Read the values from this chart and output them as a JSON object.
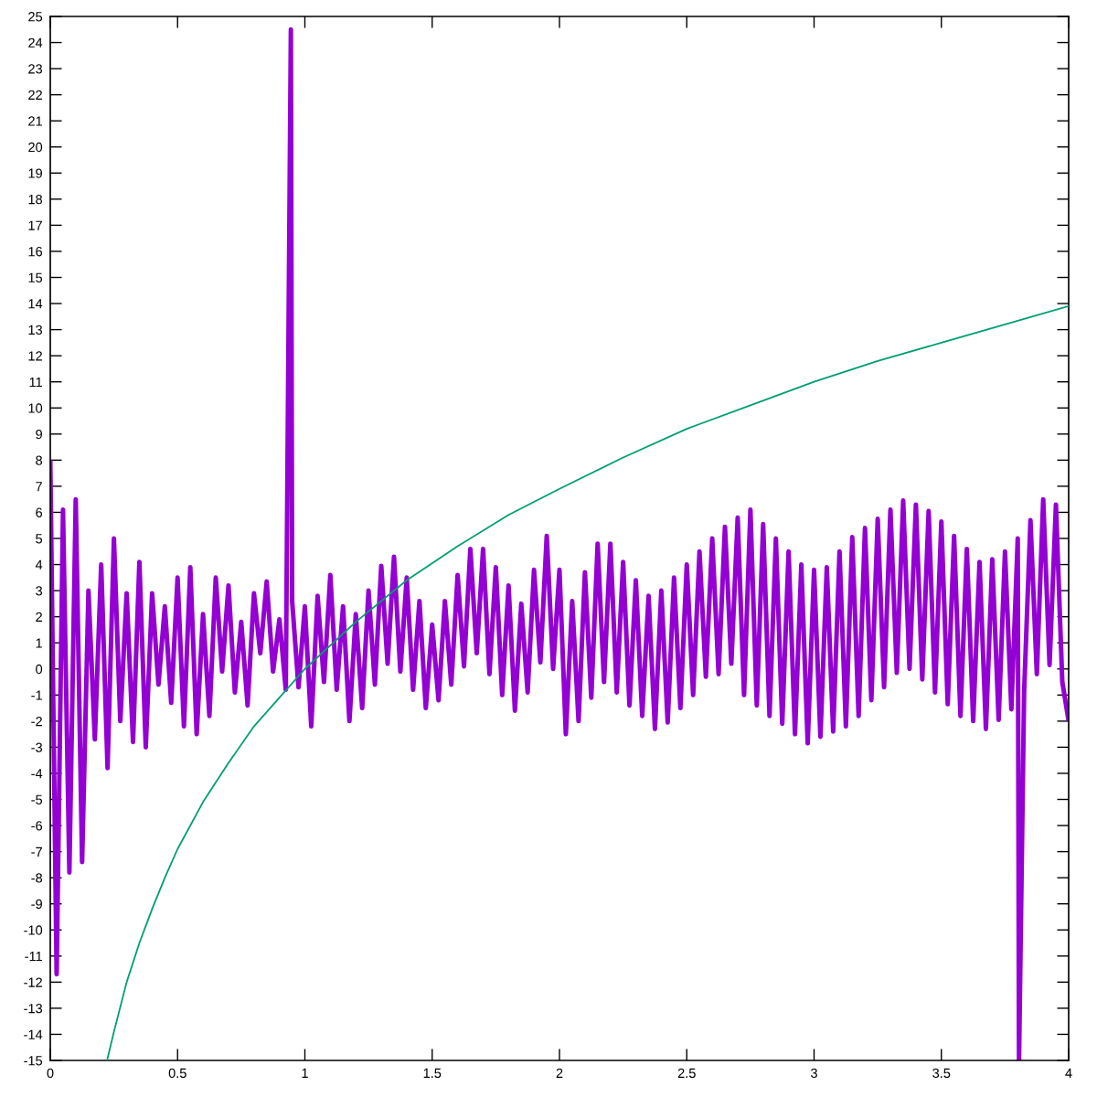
{
  "chart_data": {
    "type": "line",
    "xlim": [
      0,
      4
    ],
    "xticks": [
      0,
      0.5,
      1,
      1.5,
      2,
      2.5,
      3,
      3.5,
      4
    ],
    "ylim": [
      -15,
      25
    ],
    "yticks": [
      -15,
      -14,
      -13,
      -12,
      -11,
      -10,
      -9,
      -8,
      -7,
      -6,
      -5,
      -4,
      -3,
      -2,
      -1,
      0,
      1,
      2,
      3,
      4,
      5,
      6,
      7,
      8,
      9,
      10,
      11,
      12,
      13,
      14,
      15,
      16,
      17,
      18,
      19,
      20,
      21,
      22,
      23,
      24,
      25
    ],
    "series": [
      {
        "color": "#9400d3",
        "x": [
          0,
          0.025,
          0.05,
          0.075,
          0.1,
          0.125,
          0.15,
          0.175,
          0.2,
          0.225,
          0.25,
          0.275,
          0.3,
          0.325,
          0.35,
          0.375,
          0.4,
          0.425,
          0.45,
          0.475,
          0.5,
          0.525,
          0.55,
          0.575,
          0.6,
          0.625,
          0.65,
          0.675,
          0.7,
          0.725,
          0.75,
          0.775,
          0.8,
          0.825,
          0.85,
          0.875,
          0.9,
          0.925,
          0.945,
          0.95,
          0.975,
          1,
          1.025,
          1.05,
          1.075,
          1.1,
          1.125,
          1.15,
          1.175,
          1.2,
          1.225,
          1.25,
          1.275,
          1.3,
          1.325,
          1.35,
          1.375,
          1.4,
          1.425,
          1.45,
          1.475,
          1.5,
          1.525,
          1.55,
          1.575,
          1.6,
          1.625,
          1.65,
          1.675,
          1.7,
          1.725,
          1.75,
          1.775,
          1.8,
          1.825,
          1.85,
          1.875,
          1.9,
          1.925,
          1.95,
          1.975,
          2,
          2.025,
          2.05,
          2.075,
          2.1,
          2.125,
          2.15,
          2.175,
          2.2,
          2.225,
          2.25,
          2.275,
          2.3,
          2.325,
          2.35,
          2.375,
          2.4,
          2.425,
          2.45,
          2.475,
          2.5,
          2.525,
          2.55,
          2.575,
          2.6,
          2.625,
          2.65,
          2.675,
          2.7,
          2.725,
          2.75,
          2.775,
          2.8,
          2.825,
          2.85,
          2.875,
          2.9,
          2.925,
          2.95,
          2.975,
          3,
          3.025,
          3.05,
          3.075,
          3.1,
          3.125,
          3.15,
          3.175,
          3.2,
          3.225,
          3.25,
          3.275,
          3.3,
          3.325,
          3.35,
          3.375,
          3.4,
          3.425,
          3.45,
          3.475,
          3.5,
          3.525,
          3.55,
          3.575,
          3.6,
          3.625,
          3.65,
          3.675,
          3.7,
          3.725,
          3.75,
          3.775,
          3.8,
          3.805,
          3.825,
          3.85,
          3.875,
          3.9,
          3.925,
          3.95,
          3.975,
          4
        ],
        "values": [
          8.0,
          -11.7,
          6.1,
          -7.8,
          6.5,
          -7.4,
          3.0,
          -2.7,
          4.0,
          -3.8,
          5.0,
          -2.0,
          2.9,
          -2.8,
          4.1,
          -3.0,
          2.9,
          -0.6,
          2.4,
          -1.3,
          3.5,
          -2.2,
          3.9,
          -2.5,
          2.1,
          -1.8,
          3.5,
          -0.1,
          3.2,
          -0.9,
          1.8,
          -1.4,
          2.9,
          0.6,
          3.35,
          -0.1,
          1.9,
          -0.8,
          24.5,
          2.6,
          -0.7,
          2.4,
          -2.2,
          2.8,
          -0.5,
          3.6,
          -0.8,
          2.4,
          -2.0,
          2.1,
          -1.5,
          3.0,
          -0.6,
          3.95,
          0.2,
          4.3,
          -0.1,
          3.5,
          -0.8,
          2.6,
          -1.5,
          1.7,
          -1.2,
          2.6,
          -0.6,
          3.6,
          0.1,
          4.6,
          0.6,
          4.6,
          -0.2,
          3.9,
          -1.0,
          3.2,
          -1.6,
          2.5,
          -0.9,
          3.8,
          0.25,
          5.1,
          0.0,
          3.8,
          -2.5,
          2.6,
          -2.0,
          3.7,
          -1.1,
          4.8,
          -0.5,
          4.8,
          -0.9,
          4.1,
          -1.4,
          3.4,
          -1.8,
          2.8,
          -2.3,
          3.0,
          -2.05,
          3.5,
          -1.5,
          4.0,
          -1.0,
          4.5,
          -0.3,
          5.0,
          -0.2,
          5.45,
          0.2,
          5.8,
          -1.0,
          6.1,
          -1.4,
          5.55,
          -1.8,
          5.0,
          -2.1,
          4.5,
          -2.5,
          4.0,
          -2.85,
          3.8,
          -2.6,
          3.9,
          -2.4,
          4.5,
          -2.2,
          5.05,
          -1.8,
          5.4,
          -1.2,
          5.75,
          -0.7,
          6.1,
          -0.15,
          6.45,
          0.0,
          6.3,
          -0.4,
          6.05,
          -0.9,
          5.65,
          -1.35,
          5.1,
          -1.8,
          4.6,
          -2.0,
          4.1,
          -2.3,
          4.2,
          -1.95,
          4.5,
          -1.55,
          5.0,
          -15,
          -0.9,
          5.7,
          -0.2,
          6.5,
          0.15,
          6.3,
          -0.5,
          -2.0
        ]
      },
      {
        "color": "#009e73",
        "x": [
          0.223,
          0.25,
          0.3,
          0.35,
          0.4,
          0.45,
          0.5,
          0.6,
          0.7,
          0.8,
          0.9,
          1,
          1.2,
          1.4,
          1.6,
          1.8,
          2,
          2.25,
          2.5,
          2.75,
          3,
          3.25,
          3.5,
          3.75,
          4
        ],
        "values": [
          -15,
          -13.9,
          -12.0,
          -10.5,
          -9.2,
          -8.0,
          -6.9,
          -5.1,
          -3.6,
          -2.2,
          -1.1,
          0,
          1.8,
          3.4,
          4.7,
          5.9,
          6.9,
          8.1,
          9.2,
          10.1,
          11.0,
          11.8,
          12.5,
          13.2,
          13.9
        ]
      }
    ]
  }
}
